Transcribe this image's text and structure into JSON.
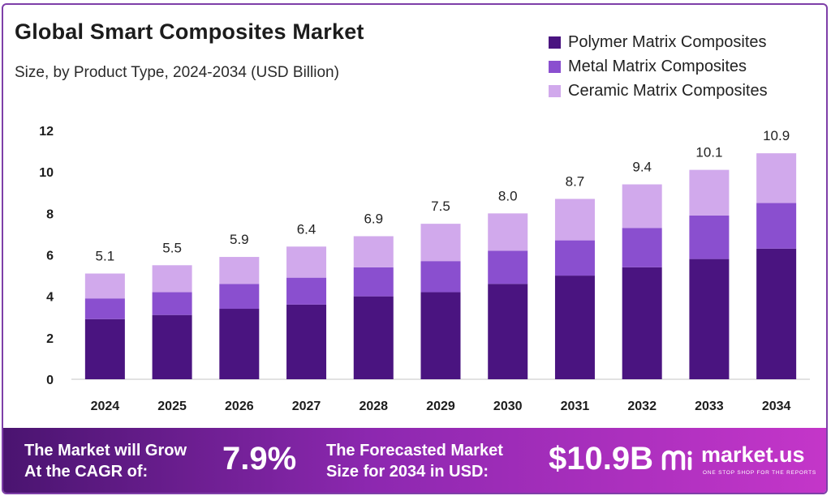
{
  "header": {
    "title": "Global Smart Composites Market",
    "subtitle": "Size, by Product Type, 2024-2034 (USD Billion)"
  },
  "legend": [
    {
      "label": "Polymer Matrix Composites",
      "color": "#4a1480"
    },
    {
      "label": "Metal Matrix Composites",
      "color": "#8a4fcf"
    },
    {
      "label": "Ceramic Matrix Composites",
      "color": "#d1a9ec"
    }
  ],
  "chart_data": {
    "type": "bar",
    "stacked": true,
    "categories": [
      "2024",
      "2025",
      "2026",
      "2027",
      "2028",
      "2029",
      "2030",
      "2031",
      "2032",
      "2033",
      "2034"
    ],
    "series": [
      {
        "name": "Polymer Matrix Composites",
        "color": "#4a1480",
        "values": [
          2.9,
          3.1,
          3.4,
          3.6,
          4.0,
          4.2,
          4.6,
          5.0,
          5.4,
          5.8,
          6.3
        ]
      },
      {
        "name": "Metal Matrix Composites",
        "color": "#8a4fcf",
        "values": [
          1.0,
          1.1,
          1.2,
          1.3,
          1.4,
          1.5,
          1.6,
          1.7,
          1.9,
          2.1,
          2.2
        ]
      },
      {
        "name": "Ceramic Matrix Composites",
        "color": "#d1a9ec",
        "values": [
          1.2,
          1.3,
          1.3,
          1.5,
          1.5,
          1.8,
          1.8,
          2.0,
          2.1,
          2.2,
          2.4
        ]
      }
    ],
    "totals": [
      "5.1",
      "5.5",
      "5.9",
      "6.4",
      "6.9",
      "7.5",
      "8.0",
      "8.7",
      "9.4",
      "10.1",
      "10.9"
    ],
    "totals_numeric": [
      5.1,
      5.5,
      5.9,
      6.4,
      6.9,
      7.5,
      8.0,
      8.7,
      9.4,
      10.1,
      10.9
    ],
    "yticks": [
      0,
      2,
      4,
      6,
      8,
      10,
      12
    ],
    "ylim": [
      0,
      12
    ],
    "grid": false,
    "legend_position": "top-right",
    "title": "Global Smart Composites Market",
    "subtitle": "Size, by Product Type, 2024-2034 (USD Billion)"
  },
  "footer": {
    "cagr_line1": "The Market will Grow",
    "cagr_line2": "At the CAGR of:",
    "cagr_value": "7.9%",
    "forecast_line1": "The Forecasted Market",
    "forecast_line2": "Size for 2034 in USD:",
    "forecast_value": "$10.9B",
    "brand_name": "market.us",
    "brand_tagline": "ONE STOP SHOP FOR THE REPORTS",
    "brand_icon": "market-us-logo-icon"
  }
}
